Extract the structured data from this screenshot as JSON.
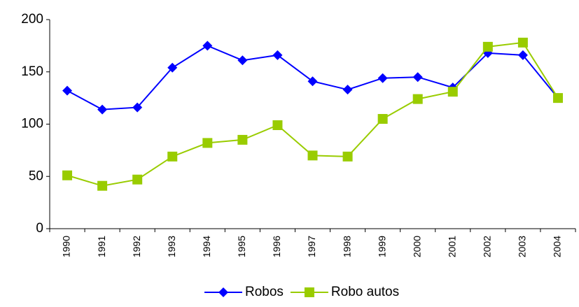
{
  "chart_data": {
    "type": "line",
    "categories": [
      "1990",
      "1991",
      "1992",
      "1993",
      "1994",
      "1995",
      "1996",
      "1997",
      "1998",
      "1999",
      "2000",
      "2001",
      "2002",
      "2003",
      "2004"
    ],
    "series": [
      {
        "name": "Robos",
        "color": "#0000ff",
        "marker": "diamond",
        "values": [
          132,
          114,
          116,
          154,
          175,
          161,
          166,
          141,
          133,
          144,
          145,
          135,
          168,
          166,
          125
        ]
      },
      {
        "name": "Robo autos",
        "color": "#99cc00",
        "marker": "square",
        "values": [
          51,
          41,
          47,
          69,
          82,
          85,
          99,
          70,
          69,
          105,
          124,
          131,
          174,
          178,
          125
        ]
      }
    ],
    "ylim": [
      0,
      200
    ],
    "yticks": [
      0,
      50,
      100,
      150,
      200
    ],
    "legend": "bottom"
  }
}
